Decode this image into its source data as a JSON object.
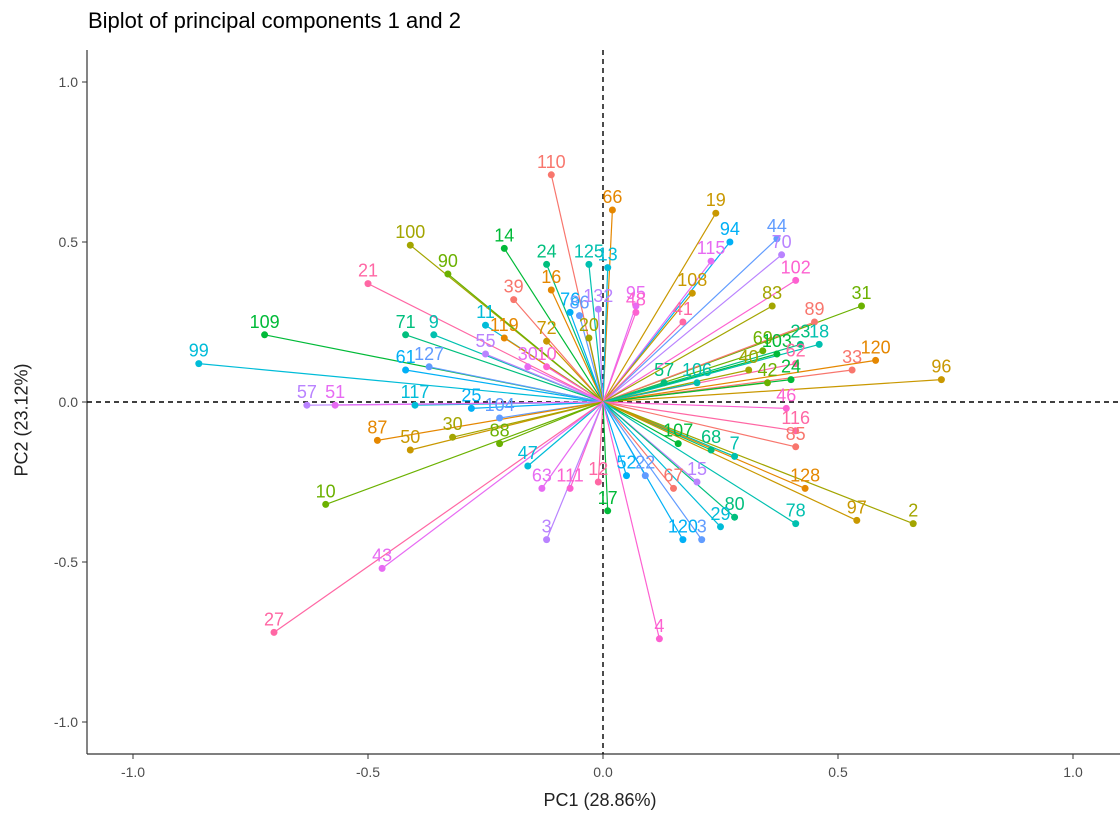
{
  "chart_data": {
    "type": "scatter",
    "title": "Biplot of principal components 1 and 2",
    "xlabel": "PC1 (28.86%)",
    "ylabel": "PC2 (23.12%)",
    "xlim": [
      -1.1,
      1.1
    ],
    "ylim": [
      -1.1,
      1.1
    ],
    "x_ticks": [
      "-1.0",
      "-0.5",
      "0.0",
      "0.5",
      "1.0"
    ],
    "y_ticks": [
      "-1.0",
      "-0.5",
      "0.0",
      "0.5",
      "1.0"
    ],
    "grid": false,
    "reference_lines": {
      "x": 0,
      "y": 0
    },
    "palette": [
      "#F8766D",
      "#E58700",
      "#C99800",
      "#A3A500",
      "#6BB100",
      "#00BA38",
      "#00BF7D",
      "#00C0AF",
      "#00BCD8",
      "#00B0F6",
      "#619CFF",
      "#B983FF",
      "#E76BF3",
      "#FD61D1",
      "#FF67A4"
    ],
    "points": [
      {
        "label": "110",
        "x": -0.11,
        "y": 0.71
      },
      {
        "label": "66",
        "x": 0.02,
        "y": 0.6
      },
      {
        "label": "19",
        "x": 0.24,
        "y": 0.59
      },
      {
        "label": "100",
        "x": -0.41,
        "y": 0.49
      },
      {
        "label": "90",
        "x": -0.33,
        "y": 0.4
      },
      {
        "label": "14",
        "x": -0.21,
        "y": 0.48
      },
      {
        "label": "24",
        "x": -0.12,
        "y": 0.43
      },
      {
        "label": "125",
        "x": -0.03,
        "y": 0.43
      },
      {
        "label": "13",
        "x": 0.01,
        "y": 0.42
      },
      {
        "label": "94",
        "x": 0.27,
        "y": 0.5
      },
      {
        "label": "44",
        "x": 0.37,
        "y": 0.51
      },
      {
        "label": "70",
        "x": 0.38,
        "y": 0.46
      },
      {
        "label": "115",
        "x": 0.23,
        "y": 0.44
      },
      {
        "label": "102",
        "x": 0.41,
        "y": 0.38
      },
      {
        "label": "21",
        "x": -0.5,
        "y": 0.37
      },
      {
        "label": "39",
        "x": -0.19,
        "y": 0.32
      },
      {
        "label": "16",
        "x": -0.11,
        "y": 0.35
      },
      {
        "label": "108",
        "x": 0.19,
        "y": 0.34
      },
      {
        "label": "83",
        "x": 0.36,
        "y": 0.3
      },
      {
        "label": "31",
        "x": 0.55,
        "y": 0.3
      },
      {
        "label": "109",
        "x": -0.72,
        "y": 0.21
      },
      {
        "label": "71",
        "x": -0.42,
        "y": 0.21
      },
      {
        "label": "9",
        "x": -0.36,
        "y": 0.21
      },
      {
        "label": "11",
        "x": -0.25,
        "y": 0.24
      },
      {
        "label": "76",
        "x": -0.07,
        "y": 0.28
      },
      {
        "label": "86",
        "x": -0.05,
        "y": 0.27
      },
      {
        "label": "132",
        "x": -0.01,
        "y": 0.29
      },
      {
        "label": "95",
        "x": 0.07,
        "y": 0.3
      },
      {
        "label": "48",
        "x": 0.07,
        "y": 0.28
      },
      {
        "label": "41",
        "x": 0.17,
        "y": 0.25
      },
      {
        "label": "89",
        "x": 0.45,
        "y": 0.25
      },
      {
        "label": "119",
        "x": -0.21,
        "y": 0.2
      },
      {
        "label": "72",
        "x": -0.12,
        "y": 0.19
      },
      {
        "label": "20",
        "x": -0.03,
        "y": 0.2
      },
      {
        "label": "69",
        "x": 0.34,
        "y": 0.16
      },
      {
        "label": "103",
        "x": 0.37,
        "y": 0.15
      },
      {
        "label": "23",
        "x": 0.42,
        "y": 0.18
      },
      {
        "label": "18",
        "x": 0.46,
        "y": 0.18
      },
      {
        "label": "99",
        "x": -0.86,
        "y": 0.12
      },
      {
        "label": "61",
        "x": -0.42,
        "y": 0.1
      },
      {
        "label": "127",
        "x": -0.37,
        "y": 0.11
      },
      {
        "label": "55",
        "x": -0.25,
        "y": 0.15
      },
      {
        "label": "30",
        "x": -0.16,
        "y": 0.11
      },
      {
        "label": "10",
        "x": -0.12,
        "y": 0.11
      },
      {
        "label": "62",
        "x": 0.41,
        "y": 0.12
      },
      {
        "label": "33",
        "x": 0.53,
        "y": 0.1
      },
      {
        "label": "120",
        "x": 0.58,
        "y": 0.13
      },
      {
        "label": "96",
        "x": 0.72,
        "y": 0.07
      },
      {
        "label": "40",
        "x": 0.31,
        "y": 0.1
      },
      {
        "label": "42",
        "x": 0.35,
        "y": 0.06
      },
      {
        "label": "24",
        "x": 0.4,
        "y": 0.07
      },
      {
        "label": "57",
        "x": 0.13,
        "y": 0.06
      },
      {
        "label": "106",
        "x": 0.2,
        "y": 0.06
      },
      {
        "label": "117",
        "x": -0.4,
        "y": -0.01
      },
      {
        "label": "25",
        "x": -0.28,
        "y": -0.02
      },
      {
        "label": "104",
        "x": -0.22,
        "y": -0.05
      },
      {
        "label": "57",
        "x": -0.63,
        "y": -0.01
      },
      {
        "label": "51",
        "x": -0.57,
        "y": -0.01
      },
      {
        "label": "46",
        "x": 0.39,
        "y": -0.02
      },
      {
        "label": "116",
        "x": 0.41,
        "y": -0.09
      },
      {
        "label": "85",
        "x": 0.41,
        "y": -0.14
      },
      {
        "label": "87",
        "x": -0.48,
        "y": -0.12
      },
      {
        "label": "50",
        "x": -0.41,
        "y": -0.15
      },
      {
        "label": "30",
        "x": -0.32,
        "y": -0.11
      },
      {
        "label": "88",
        "x": -0.22,
        "y": -0.13
      },
      {
        "label": "107",
        "x": 0.16,
        "y": -0.13
      },
      {
        "label": "68",
        "x": 0.23,
        "y": -0.15
      },
      {
        "label": "7",
        "x": 0.28,
        "y": -0.17
      },
      {
        "label": "47",
        "x": -0.16,
        "y": -0.2
      },
      {
        "label": "52",
        "x": 0.05,
        "y": -0.23
      },
      {
        "label": "22",
        "x": 0.09,
        "y": -0.23
      },
      {
        "label": "15",
        "x": 0.2,
        "y": -0.25
      },
      {
        "label": "63",
        "x": -0.13,
        "y": -0.27
      },
      {
        "label": "111",
        "x": -0.07,
        "y": -0.27
      },
      {
        "label": "12",
        "x": -0.01,
        "y": -0.25
      },
      {
        "label": "67",
        "x": 0.15,
        "y": -0.27
      },
      {
        "label": "128",
        "x": 0.43,
        "y": -0.27
      },
      {
        "label": "97",
        "x": 0.54,
        "y": -0.37
      },
      {
        "label": "2",
        "x": 0.66,
        "y": -0.38
      },
      {
        "label": "10",
        "x": -0.59,
        "y": -0.32
      },
      {
        "label": "17",
        "x": 0.01,
        "y": -0.34
      },
      {
        "label": "80",
        "x": 0.28,
        "y": -0.36
      },
      {
        "label": "78",
        "x": 0.41,
        "y": -0.38
      },
      {
        "label": "29",
        "x": 0.25,
        "y": -0.39
      },
      {
        "label": "120",
        "x": 0.17,
        "y": -0.43
      },
      {
        "label": "3",
        "x": 0.21,
        "y": -0.43
      },
      {
        "label": "3",
        "x": -0.12,
        "y": -0.43
      },
      {
        "label": "43",
        "x": -0.47,
        "y": -0.52
      },
      {
        "label": "4",
        "x": 0.12,
        "y": -0.74
      },
      {
        "label": "27",
        "x": -0.7,
        "y": -0.72
      }
    ]
  }
}
